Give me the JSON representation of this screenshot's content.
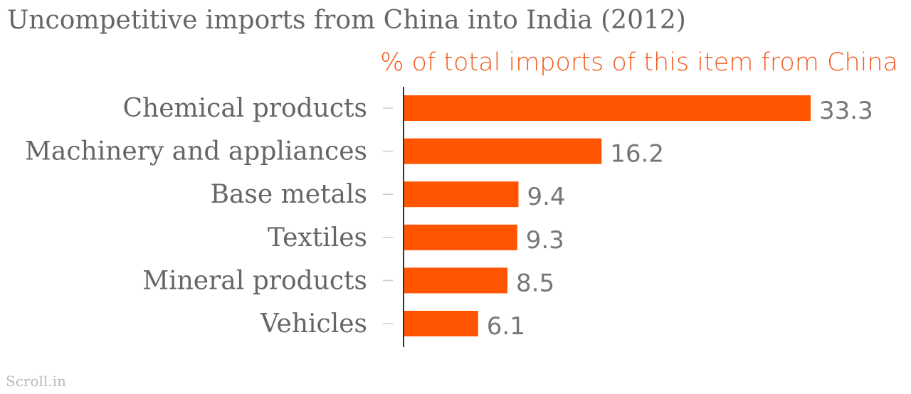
{
  "chart_data": {
    "type": "bar",
    "orientation": "horizontal",
    "title": "Uncompetitive imports from China into India (2012)",
    "subtitle": "% of total imports of this item from China",
    "categories": [
      "Chemical products",
      "Machinery and appliances",
      "Base metals",
      "Textiles",
      "Mineral products",
      "Vehicles"
    ],
    "values": [
      33.3,
      16.2,
      9.4,
      9.3,
      8.5,
      6.1
    ],
    "value_labels": [
      "33.3",
      "16.2",
      "9.4",
      "9.3",
      "8.5",
      "6.1"
    ],
    "xlim": [
      0,
      33.3
    ],
    "grid": false,
    "bar_color": "#ff5500"
  },
  "footer": {
    "source": "Scroll.in"
  }
}
